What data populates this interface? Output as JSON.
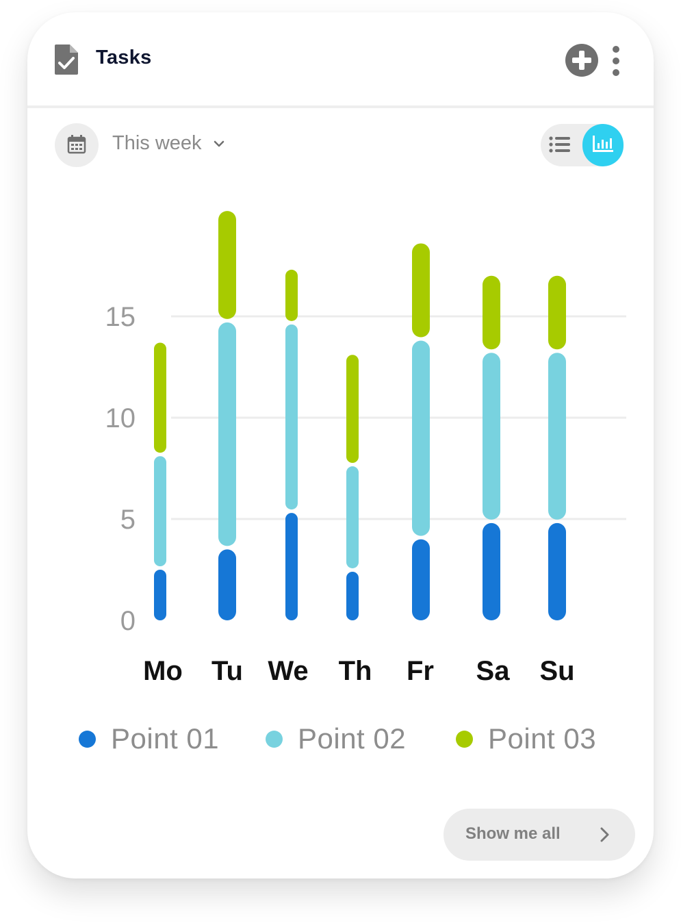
{
  "header": {
    "title": "Tasks",
    "icons": {
      "document": "document-check-icon",
      "add": "plus-circle-icon",
      "more": "more-vertical-icon"
    }
  },
  "filter": {
    "period": "This week",
    "icons": {
      "calendar": "calendar-icon",
      "chevron": "chevron-down-icon"
    }
  },
  "view_toggle": {
    "active": "chart",
    "icons": {
      "list": "list-icon",
      "chart": "bar-chart-icon"
    }
  },
  "colors": {
    "point01": "#1677d6",
    "point02": "#78d2df",
    "point03": "#a7cb00",
    "accent": "#2fd0f0",
    "grid": "#ececec"
  },
  "chart_data": {
    "type": "bar",
    "stacked": true,
    "categories": [
      "Mo",
      "Tu",
      "We",
      "Th",
      "Fr",
      "Sa",
      "Su"
    ],
    "series": [
      {
        "name": "Point 01",
        "values": [
          2.5,
          3.5,
          5.3,
          2.4,
          4.0,
          4.8,
          4.8
        ]
      },
      {
        "name": "Point 02",
        "values": [
          5.6,
          11.2,
          9.3,
          5.2,
          9.8,
          8.4,
          8.4
        ]
      },
      {
        "name": "Point 03",
        "values": [
          5.6,
          5.5,
          2.7,
          5.5,
          4.8,
          3.8,
          3.8
        ]
      }
    ],
    "yticks": [
      0,
      5,
      10,
      15
    ],
    "ylim": [
      0,
      20
    ],
    "grid": true,
    "legend": "bottom"
  },
  "legend": {
    "items": [
      "Point 01",
      "Point 02",
      "Point 03"
    ]
  },
  "footer": {
    "show_all_label": "Show me all",
    "arrow_icon": "chevron-right-icon"
  }
}
